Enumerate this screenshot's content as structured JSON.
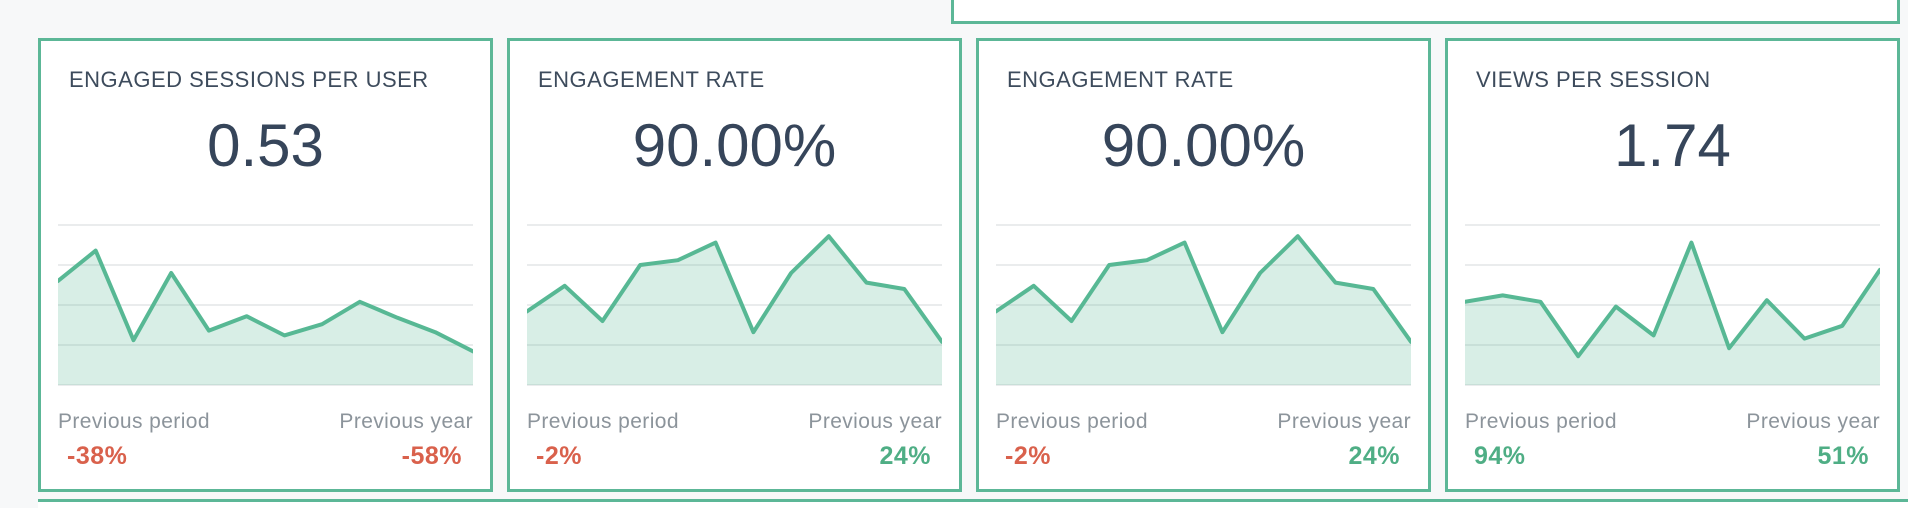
{
  "page": {
    "background_color": "#f7f8f9",
    "card_border_color": "#5cb797"
  },
  "colors": {
    "title_text": "#3d4b5c",
    "value_text": "#36455a",
    "label_text": "#8c949b",
    "negative_delta": "#d9614c",
    "positive_delta": "#4fae85",
    "spark_line": "#57b894",
    "spark_fill": "rgba(92,184,151,0.24)",
    "spark_grid": "#e3e5e7"
  },
  "cards": [
    {
      "title": "ENGAGED SESSIONS PER USER",
      "value": "0.53",
      "previous_period": {
        "label": "Previous period",
        "value": "-38%",
        "direction": "negative"
      },
      "previous_year": {
        "label": "Previous year",
        "value": "-58%",
        "direction": "negative"
      }
    },
    {
      "title": "ENGAGEMENT RATE",
      "value": "90.00%",
      "previous_period": {
        "label": "Previous period",
        "value": "-2%",
        "direction": "negative"
      },
      "previous_year": {
        "label": "Previous year",
        "value": "24%",
        "direction": "positive"
      }
    },
    {
      "title": "ENGAGEMENT RATE",
      "value": "90.00%",
      "previous_period": {
        "label": "Previous period",
        "value": "-2%",
        "direction": "negative"
      },
      "previous_year": {
        "label": "Previous year",
        "value": "24%",
        "direction": "positive"
      }
    },
    {
      "title": "VIEWS PER SESSION",
      "value": "1.74",
      "previous_period": {
        "label": "Previous period",
        "value": "94%",
        "direction": "positive"
      },
      "previous_year": {
        "label": "Previous year",
        "value": "51%",
        "direction": "positive"
      }
    }
  ],
  "chart_data": [
    {
      "type": "area",
      "title": "ENGAGED SESSIONS PER USER",
      "metric_value": "0.53",
      "previous_period_change": "-38%",
      "previous_year_change": "-58%",
      "x": [
        1,
        2,
        3,
        4,
        5,
        6,
        7,
        8,
        9,
        10,
        11,
        12
      ],
      "values": [
        0.65,
        0.84,
        0.28,
        0.7,
        0.34,
        0.43,
        0.31,
        0.38,
        0.52,
        0.42,
        0.33,
        0.21
      ],
      "ylim": [
        0,
        1
      ],
      "grid": true,
      "note": "sparkline has no axis labels; y values estimated as fraction of chart height"
    },
    {
      "type": "area",
      "title": "ENGAGEMENT RATE",
      "metric_value": "90.00%",
      "previous_period_change": "-2%",
      "previous_year_change": "24%",
      "x": [
        1,
        2,
        3,
        4,
        5,
        6,
        7,
        8,
        9,
        10,
        11,
        12
      ],
      "values": [
        0.46,
        0.62,
        0.4,
        0.75,
        0.78,
        0.89,
        0.33,
        0.7,
        0.93,
        0.64,
        0.6,
        0.27
      ],
      "ylim": [
        0,
        1
      ],
      "grid": true,
      "note": "sparkline has no axis labels; y values estimated as fraction of chart height"
    },
    {
      "type": "area",
      "title": "ENGAGEMENT RATE",
      "metric_value": "90.00%",
      "previous_period_change": "-2%",
      "previous_year_change": "24%",
      "x": [
        1,
        2,
        3,
        4,
        5,
        6,
        7,
        8,
        9,
        10,
        11,
        12
      ],
      "values": [
        0.46,
        0.62,
        0.4,
        0.75,
        0.78,
        0.89,
        0.33,
        0.7,
        0.93,
        0.64,
        0.6,
        0.27
      ],
      "ylim": [
        0,
        1
      ],
      "grid": true,
      "note": "sparkline has no axis labels; y values estimated as fraction of chart height"
    },
    {
      "type": "area",
      "title": "VIEWS PER SESSION",
      "metric_value": "1.74",
      "previous_period_change": "94%",
      "previous_year_change": "51%",
      "x": [
        1,
        2,
        3,
        4,
        5,
        6,
        7,
        8,
        9,
        10,
        11,
        12
      ],
      "values": [
        0.52,
        0.56,
        0.52,
        0.18,
        0.49,
        0.31,
        0.89,
        0.23,
        0.53,
        0.29,
        0.37,
        0.72
      ],
      "ylim": [
        0,
        1
      ],
      "grid": true,
      "note": "sparkline has no axis labels; y values estimated as fraction of chart height"
    }
  ]
}
